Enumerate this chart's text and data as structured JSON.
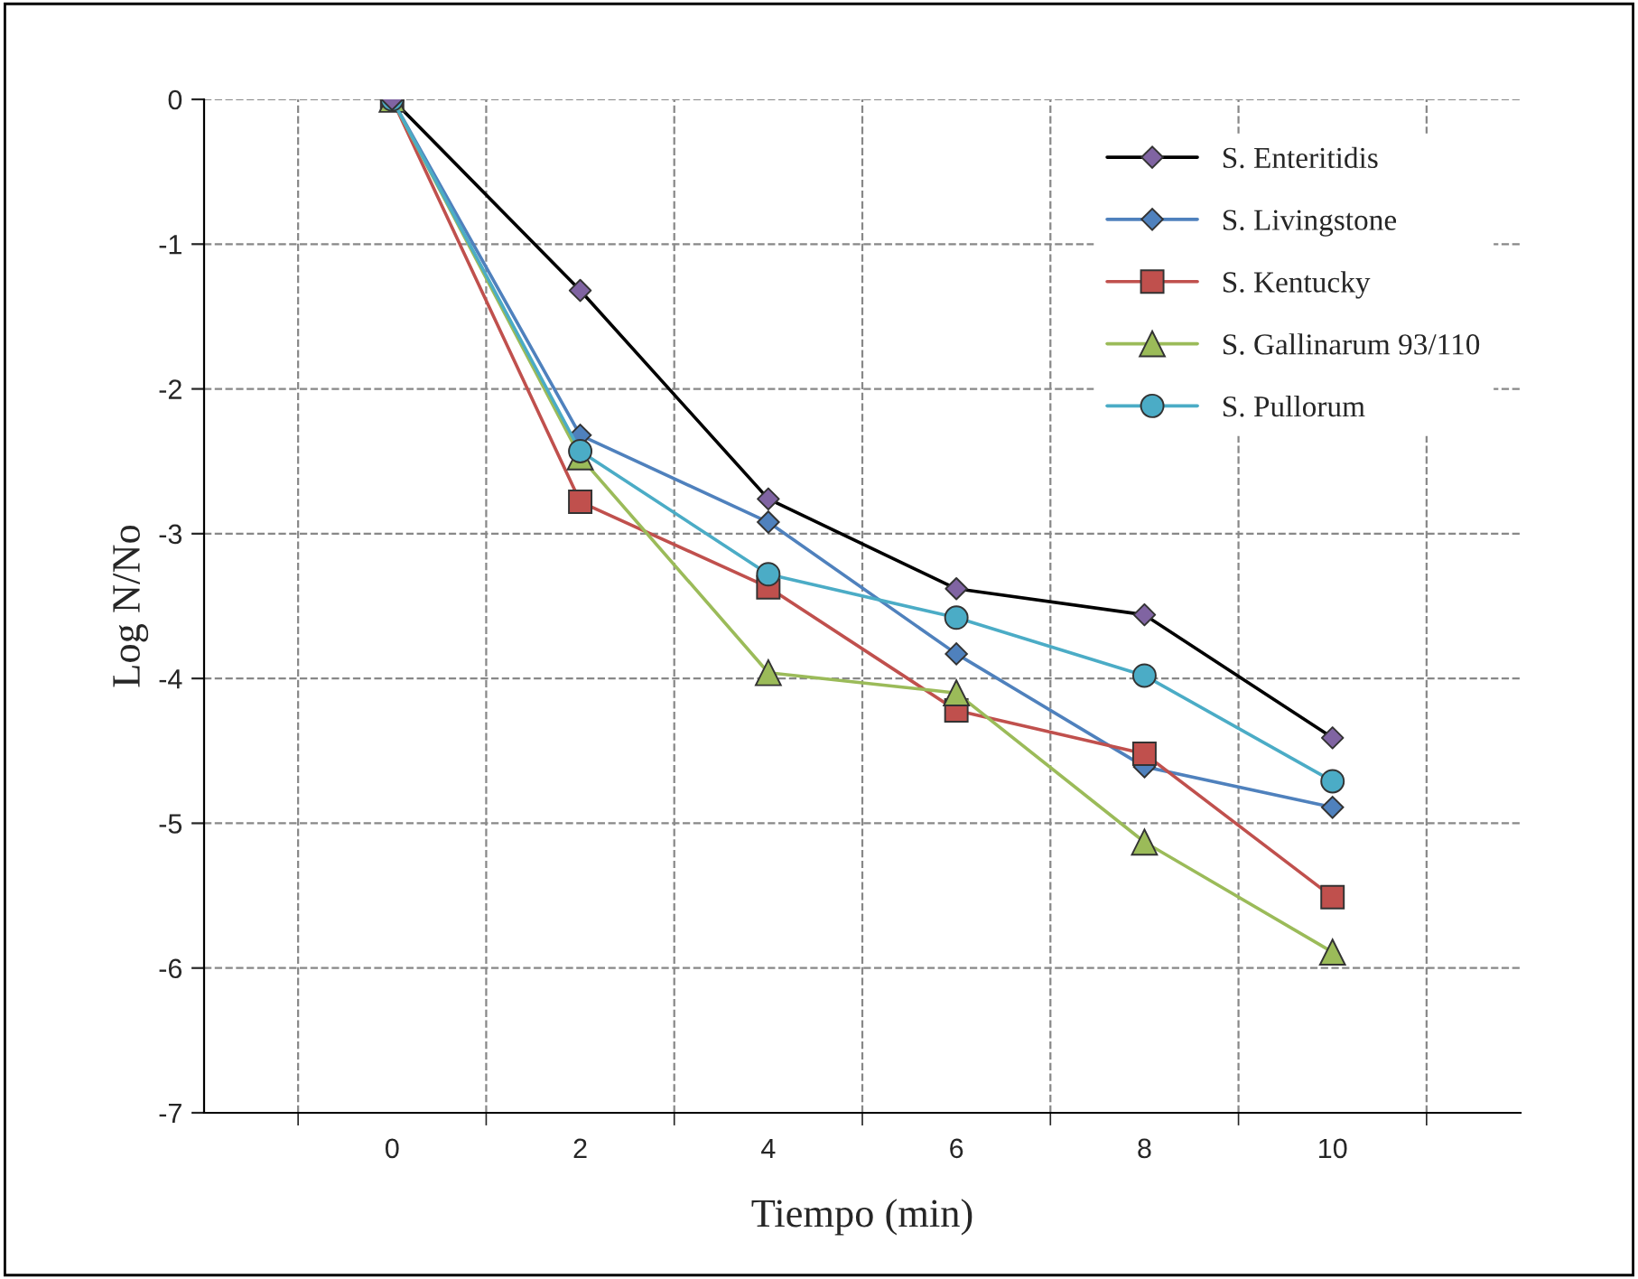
{
  "chart_data": {
    "type": "line",
    "xlabel": "Tiempo (min)",
    "ylabel": "Log N/No",
    "categories": [
      "0",
      "2",
      "4",
      "6",
      "8",
      "10"
    ],
    "ylim": [
      -7,
      0
    ],
    "yticks": [
      -7,
      -6,
      -5,
      -4,
      -3,
      -2,
      -1,
      0
    ],
    "grid": true,
    "line_style": "solid",
    "legend": "top right",
    "series": [
      {
        "name": "S. Enteritidis",
        "color": "#000000",
        "colors": [
          "#8064a2",
          "#8064a2",
          "#8064a2",
          "#8064a2",
          "#8064a2",
          "#8064a2"
        ],
        "marker": "diamond",
        "values": [
          0,
          -1.32,
          -2.76,
          -3.38,
          -3.56,
          -4.41
        ]
      },
      {
        "name": "S. Livingstone",
        "color": "#4f81bd",
        "marker": "diamond",
        "values": [
          0,
          -2.32,
          -2.92,
          -3.83,
          -4.61,
          -4.89
        ]
      },
      {
        "name": "S. Kentucky",
        "color": "#c0504d",
        "marker": "square",
        "values": [
          0,
          -2.78,
          -3.37,
          -4.22,
          -4.52,
          -5.51
        ]
      },
      {
        "name": "S. Gallinarum 93/110",
        "color": "#9bbb59",
        "marker": "triangle",
        "values": [
          0,
          -2.47,
          -3.96,
          -4.1,
          -5.13,
          -5.89
        ]
      },
      {
        "name": "S. Pullorum",
        "color": "#4bacc6",
        "marker": "circle",
        "values": [
          0,
          -2.43,
          -3.28,
          -3.58,
          -3.98,
          -4.71
        ]
      }
    ]
  }
}
